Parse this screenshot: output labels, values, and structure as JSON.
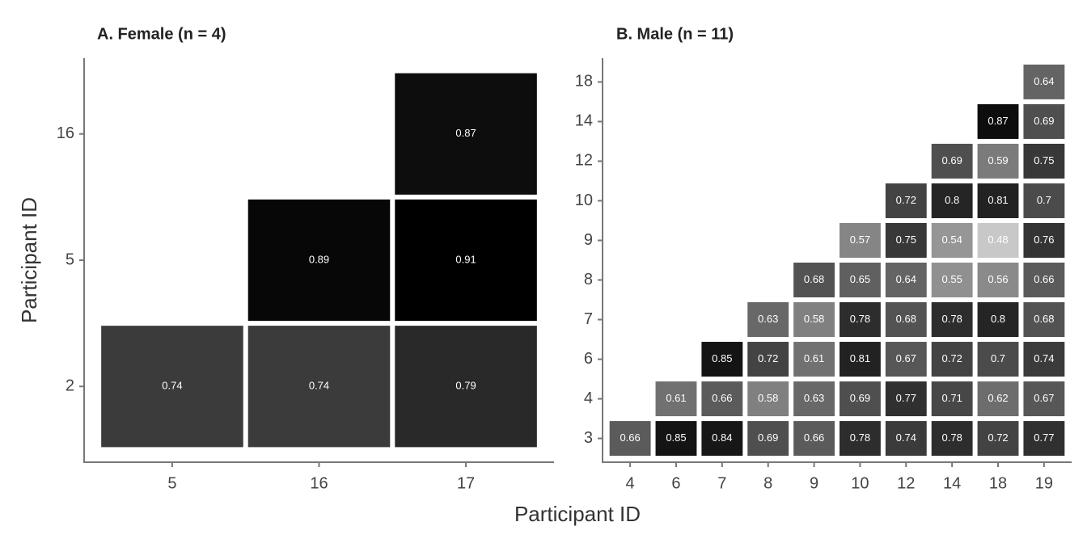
{
  "chart_data": [
    {
      "type": "heatmap",
      "title": "A. Female (n = 4)",
      "xlabel": "Participant ID",
      "ylabel": "Participant ID",
      "colors": [
        "#c8c8c8",
        "#000000"
      ],
      "x": [
        "5",
        "16",
        "17"
      ],
      "y": [
        "2",
        "5",
        "16"
      ],
      "values": [
        [
          0.74,
          0.74,
          0.79
        ],
        [
          null,
          0.89,
          0.91
        ],
        [
          null,
          null,
          0.87
        ]
      ]
    },
    {
      "type": "heatmap",
      "title": "B. Male (n = 11)",
      "colors": [
        "#c8c8c8",
        "#000000"
      ],
      "x": [
        "4",
        "6",
        "7",
        "8",
        "9",
        "10",
        "12",
        "14",
        "18",
        "19"
      ],
      "y": [
        "3",
        "4",
        "6",
        "7",
        "8",
        "9",
        "10",
        "12",
        "14",
        "18"
      ],
      "values": [
        [
          0.66,
          0.85,
          0.84,
          0.69,
          0.66,
          0.78,
          0.74,
          0.78,
          0.72,
          0.77
        ],
        [
          null,
          0.61,
          0.66,
          0.58,
          0.63,
          0.69,
          0.77,
          0.71,
          0.62,
          0.67
        ],
        [
          null,
          null,
          0.85,
          0.72,
          0.61,
          0.81,
          0.67,
          0.72,
          0.7,
          0.74
        ],
        [
          null,
          null,
          null,
          0.63,
          0.58,
          0.78,
          0.68,
          0.78,
          0.8,
          0.68
        ],
        [
          null,
          null,
          null,
          null,
          0.68,
          0.65,
          0.64,
          0.55,
          0.56,
          0.66
        ],
        [
          null,
          null,
          null,
          null,
          null,
          0.57,
          0.75,
          0.54,
          0.48,
          0.76
        ],
        [
          null,
          null,
          null,
          null,
          null,
          null,
          0.72,
          0.8,
          0.81,
          0.7
        ],
        [
          null,
          null,
          null,
          null,
          null,
          null,
          null,
          0.69,
          0.59,
          0.75
        ],
        [
          null,
          null,
          null,
          null,
          null,
          null,
          null,
          null,
          0.87,
          0.69
        ],
        [
          null,
          null,
          null,
          null,
          null,
          null,
          null,
          null,
          null,
          0.64
        ]
      ]
    }
  ]
}
